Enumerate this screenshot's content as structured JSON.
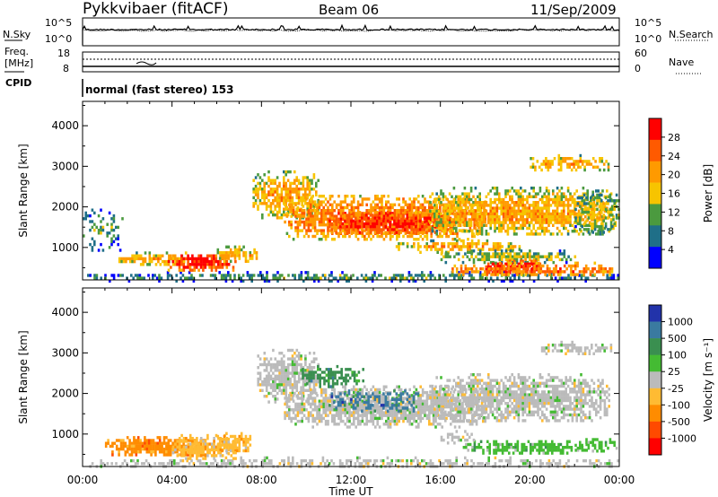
{
  "header": {
    "station": "Pykkvibaer (fitACF)",
    "beam": "Beam 06",
    "date": "11/Sep/2009"
  },
  "noise_panel": {
    "left_label": "N.Sky",
    "right_label": "N.Search",
    "left_ticks": [
      "10^5",
      "10^0"
    ],
    "right_ticks": [
      "10^5",
      "10^0"
    ]
  },
  "freq_panel": {
    "left_label_line1": "Freq.",
    "left_label_line2": "[MHz]",
    "cpid_label": "CPID",
    "right_label": "Nave",
    "left_ticks": [
      "18",
      "8"
    ],
    "right_ticks": [
      "60",
      "0"
    ]
  },
  "mode_text": "normal (fast stereo) 153",
  "chart_data": [
    {
      "type": "heatmap",
      "name": "power",
      "ylabel": "Slant Range [km]",
      "xlabel": "Time UT",
      "x_ticks": [
        "00:00",
        "04:00",
        "08:00",
        "12:00",
        "16:00",
        "20:00",
        "00:00"
      ],
      "y_ticks": [
        1000,
        2000,
        3000,
        4000
      ],
      "ylim": [
        200,
        4600
      ],
      "colorbar": {
        "label": "Power [dB]",
        "ticks": [
          "28",
          "24",
          "20",
          "16",
          "12",
          "8",
          "4"
        ],
        "colors": [
          "#ff0000",
          "#ff5a00",
          "#ff9a00",
          "#f7c400",
          "#4b9a3f",
          "#1f6f88",
          "#0000ff"
        ]
      }
    },
    {
      "type": "heatmap",
      "name": "velocity",
      "ylabel": "Slant Range [km]",
      "xlabel": "Time UT",
      "x_ticks": [
        "00:00",
        "04:00",
        "08:00",
        "12:00",
        "16:00",
        "20:00",
        "00:00"
      ],
      "y_ticks": [
        1000,
        2000,
        3000,
        4000
      ],
      "ylim": [
        200,
        4600
      ],
      "colorbar": {
        "label": "Velocity [m s⁻¹]",
        "ticks": [
          "1000",
          "500",
          "100",
          "25",
          "-25",
          "-100",
          "-500",
          "-1000"
        ],
        "colors": [
          "#2233aa",
          "#3a7aa0",
          "#3a8f50",
          "#44bb33",
          "#bbbbbb",
          "#ffbb33",
          "#ff8c00",
          "#ff4a00",
          "#ff0000"
        ]
      }
    }
  ]
}
